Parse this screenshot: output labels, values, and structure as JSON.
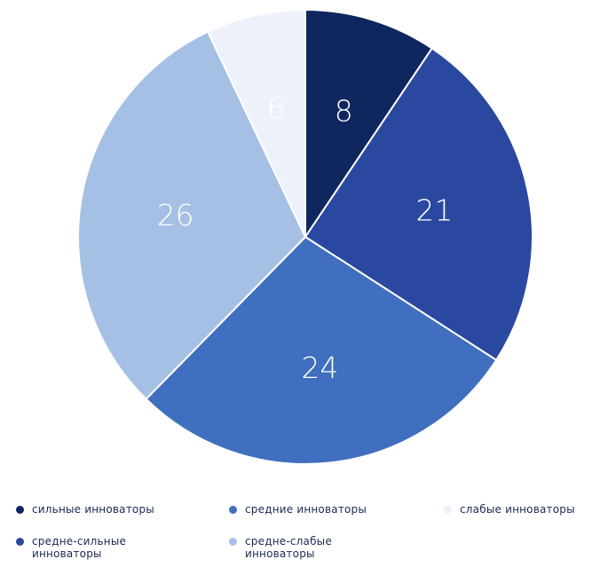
{
  "chart_data": {
    "type": "pie",
    "slices": [
      {
        "label": "сильные инноваторы",
        "value": 8,
        "color": "#10265f"
      },
      {
        "label": "средне-сильные инноваторы",
        "value": 21,
        "color": "#2b48a0"
      },
      {
        "label": "средние инноваторы",
        "value": 24,
        "color": "#3f6fbe"
      },
      {
        "label": "средне-слабые инноваторы",
        "value": 26,
        "color": "#a6bfe4"
      },
      {
        "label": "слабые инноваторы",
        "value": 6,
        "color": "#edf2fa"
      }
    ],
    "start_angle_deg": 0,
    "direction": "clockwise",
    "legend_position": "bottom",
    "legend": [
      {
        "label": "сильные инноваторы",
        "color": "#10265f"
      },
      {
        "label": "средние инноваторы",
        "color": "#3f6fbe"
      },
      {
        "label": "слабые инноваторы",
        "color": "#edf2fa"
      },
      {
        "label": "средне-сильные инноваторы",
        "color": "#2b48a0"
      },
      {
        "label": "средне-слабые инноваторы",
        "color": "#a6bfe4"
      }
    ]
  }
}
